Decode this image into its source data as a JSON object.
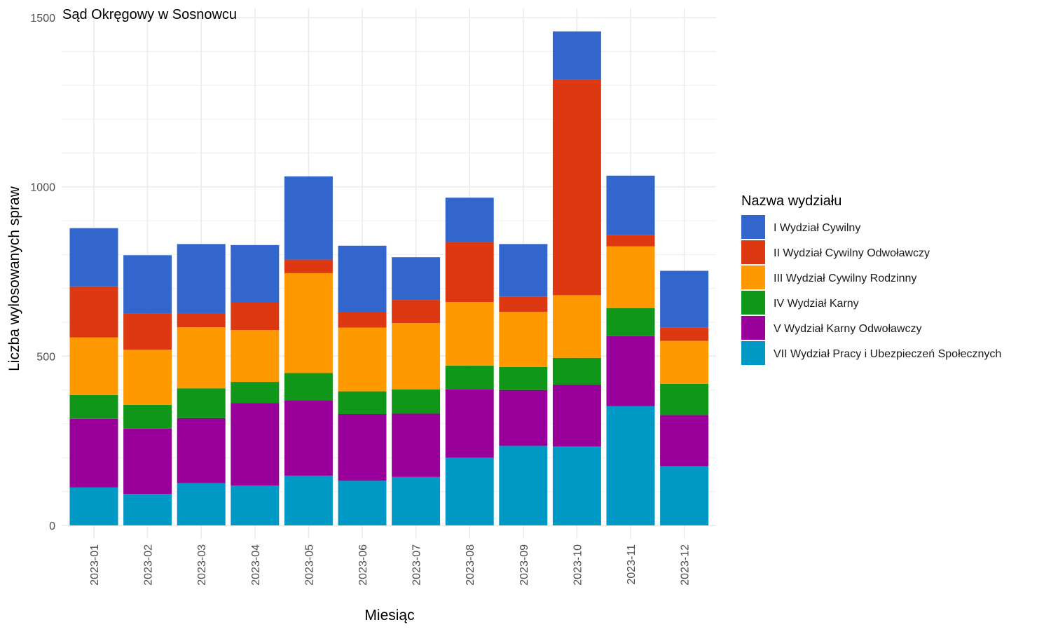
{
  "chart_data": {
    "type": "bar",
    "stacked": true,
    "title": "Sąd Okręgowy w Sosnowcu",
    "xlabel": "Miesiąc",
    "ylabel": "Liczba wylosowanych spraw",
    "ylim": [
      0,
      1500
    ],
    "yticks": [
      0,
      500,
      1000,
      1500
    ],
    "grid": true,
    "legend_title": "Nazwa wydziału",
    "legend_position": "right",
    "categories": [
      "2023-01",
      "2023-02",
      "2023-03",
      "2023-04",
      "2023-05",
      "2023-06",
      "2023-07",
      "2023-08",
      "2023-09",
      "2023-10",
      "2023-11",
      "2023-12"
    ],
    "series": [
      {
        "name": "VII Wydział Pracy i Ubezpieczeń Społecznych",
        "color": "#0099c6",
        "values": [
          112,
          93,
          125,
          118,
          147,
          132,
          143,
          200,
          235,
          233,
          352,
          175
        ]
      },
      {
        "name": "V Wydział Karny Odwoławczy",
        "color": "#990099",
        "values": [
          203,
          193,
          192,
          243,
          223,
          197,
          187,
          202,
          165,
          183,
          207,
          151
        ]
      },
      {
        "name": "IV Wydział Karny",
        "color": "#109618",
        "values": [
          70,
          70,
          88,
          63,
          80,
          67,
          72,
          70,
          68,
          79,
          83,
          92
        ]
      },
      {
        "name": "III Wydział Cywilny Rodzinny",
        "color": "#ff9900",
        "values": [
          170,
          163,
          180,
          153,
          295,
          188,
          196,
          188,
          163,
          185,
          182,
          127
        ]
      },
      {
        "name": "II Wydział Cywilny Odwoławczy",
        "color": "#dc3912",
        "values": [
          151,
          106,
          42,
          83,
          40,
          45,
          68,
          176,
          45,
          637,
          33,
          40
        ]
      },
      {
        "name": "I Wydział Cywilny",
        "color": "#3366cc",
        "values": [
          172,
          173,
          204,
          168,
          246,
          197,
          126,
          132,
          155,
          142,
          176,
          167
        ]
      }
    ]
  }
}
